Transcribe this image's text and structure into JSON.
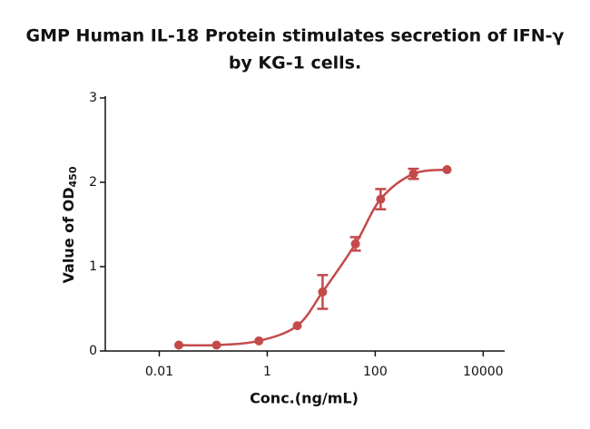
{
  "chart_data": {
    "type": "scatter",
    "title": [
      "GMP Human IL-18 Protein stimulates secretion of IFN-γ",
      "by KG-1 cells."
    ],
    "xlabel": "Conc.(ng/mL)",
    "ylabel": "Value of OD",
    "ylabel_subscript": "450",
    "xscale": "log",
    "xlim": [
      0.001,
      25000
    ],
    "xticks": [
      0.01,
      1,
      100,
      10000
    ],
    "ylim": [
      0,
      3
    ],
    "yticks": [
      0,
      1,
      2,
      3
    ],
    "series": [
      {
        "color": "#c44a4a",
        "x": [
          0.023,
          0.115,
          0.7,
          3.6,
          10.6,
          43,
          126,
          510,
          2140
        ],
        "values": [
          0.07,
          0.07,
          0.12,
          0.3,
          0.7,
          1.27,
          1.8,
          2.1,
          2.15
        ],
        "errors": [
          null,
          null,
          null,
          null,
          0.2,
          0.08,
          0.12,
          0.06,
          null
        ]
      }
    ]
  }
}
